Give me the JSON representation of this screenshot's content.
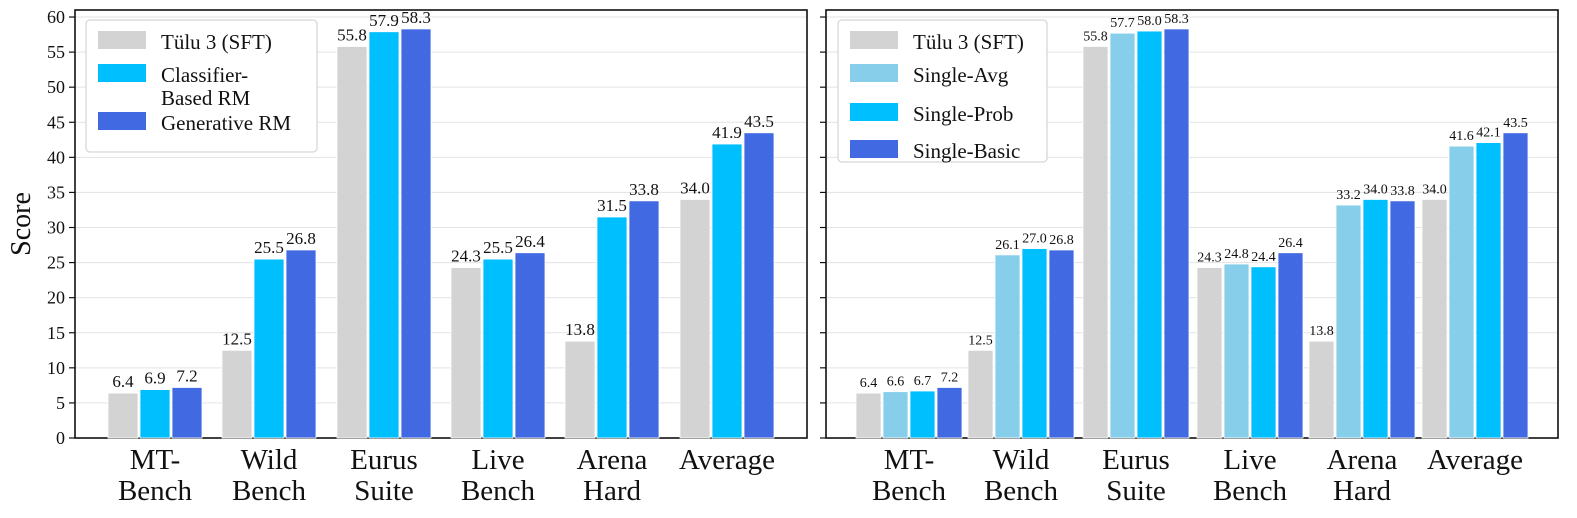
{
  "chart_data": [
    {
      "type": "bar",
      "title": "",
      "xlabel": "",
      "ylabel": "Score",
      "ylim": [
        0,
        61
      ],
      "yticks": [
        "0",
        "5",
        "10",
        "15",
        "20",
        "25",
        "30",
        "35",
        "40",
        "45",
        "50",
        "55",
        "60"
      ],
      "categories": [
        [
          "MT-",
          "Bench"
        ],
        [
          "Wild",
          "Bench"
        ],
        [
          "Eurus",
          "Suite"
        ],
        [
          "Live",
          "Bench"
        ],
        [
          "Arena",
          "Hard"
        ],
        [
          "Average"
        ]
      ],
      "series": [
        {
          "name": "Tülu 3 (SFT)",
          "values": [
            6.4,
            12.5,
            55.8,
            24.3,
            13.8,
            34.0
          ],
          "labels": [
            "6.4",
            "12.5",
            "55.8",
            "24.3",
            "13.8",
            "34.0"
          ],
          "color": "#d3d3d3"
        },
        {
          "name": [
            "Classifier-",
            "Based RM"
          ],
          "values": [
            6.9,
            25.5,
            57.9,
            25.5,
            31.5,
            41.9
          ],
          "labels": [
            "6.9",
            "25.5",
            "57.9",
            "25.5",
            "31.5",
            "41.9"
          ],
          "color": "#00bfff"
        },
        {
          "name": "Generative RM",
          "values": [
            7.2,
            26.8,
            58.3,
            26.4,
            33.8,
            43.5
          ],
          "labels": [
            "7.2",
            "26.8",
            "58.3",
            "26.4",
            "33.8",
            "43.5"
          ],
          "color": "#4169e1"
        }
      ],
      "legend": "top-left",
      "grid": true
    },
    {
      "type": "bar",
      "title": "",
      "xlabel": "",
      "ylabel": "",
      "ylim": [
        0,
        61
      ],
      "yticks": [
        "0",
        "5",
        "10",
        "15",
        "20",
        "25",
        "30",
        "35",
        "40",
        "45",
        "50",
        "55",
        "60"
      ],
      "categories": [
        [
          "MT-",
          "Bench"
        ],
        [
          "Wild",
          "Bench"
        ],
        [
          "Eurus",
          "Suite"
        ],
        [
          "Live",
          "Bench"
        ],
        [
          "Arena",
          "Hard"
        ],
        [
          "Average"
        ]
      ],
      "series": [
        {
          "name": "Tülu 3 (SFT)",
          "values": [
            6.4,
            12.5,
            55.8,
            24.3,
            13.8,
            34.0
          ],
          "labels": [
            "6.4",
            "12.5",
            "55.8",
            "24.3",
            "13.8",
            "34.0"
          ],
          "color": "#d3d3d3"
        },
        {
          "name": "Single-Avg",
          "values": [
            6.6,
            26.1,
            57.7,
            24.8,
            33.2,
            41.6
          ],
          "labels": [
            "6.6",
            "26.1",
            "57.7",
            "24.8",
            "33.2",
            "41.6"
          ],
          "color": "#87ceeb"
        },
        {
          "name": "Single-Prob",
          "values": [
            6.7,
            27.0,
            58.0,
            24.4,
            34.0,
            42.1
          ],
          "labels": [
            "6.7",
            "27.0",
            "58.0",
            "24.4",
            "34.0",
            "42.1"
          ],
          "color": "#00bfff"
        },
        {
          "name": "Single-Basic",
          "values": [
            7.2,
            26.8,
            58.3,
            26.4,
            33.8,
            43.5
          ],
          "labels": [
            "7.2",
            "26.8",
            "58.3",
            "26.4",
            "33.8",
            "43.5"
          ],
          "color": "#4169e1"
        }
      ],
      "legend": "top-left",
      "grid": true
    }
  ]
}
